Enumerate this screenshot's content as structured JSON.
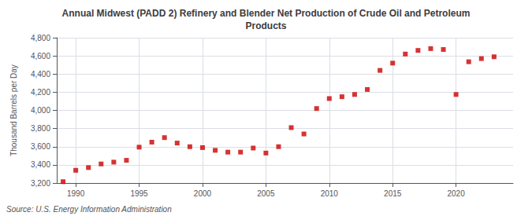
{
  "chart_data": {
    "type": "scatter",
    "title": "Annual Midwest (PADD 2) Refinery and Blender Net Production of Crude Oil and Petroleum\nProducts",
    "ylabel": "Thousand Barrels per Day",
    "source": "Source: U.S. Energy Information Administration",
    "x": [
      1989,
      1990,
      1991,
      1992,
      1993,
      1994,
      1995,
      1996,
      1997,
      1998,
      1999,
      2000,
      2001,
      2002,
      2003,
      2004,
      2005,
      2006,
      2007,
      2008,
      2009,
      2010,
      2011,
      2012,
      2013,
      2014,
      2015,
      2016,
      2017,
      2018,
      2019,
      2020,
      2021,
      2022,
      2023
    ],
    "values": [
      3215,
      3340,
      3370,
      3410,
      3430,
      3450,
      3595,
      3650,
      3700,
      3640,
      3600,
      3590,
      3560,
      3540,
      3540,
      3585,
      3530,
      3600,
      3810,
      3740,
      4020,
      4130,
      4150,
      4175,
      4230,
      4440,
      4520,
      4620,
      4660,
      4680,
      4670,
      4175,
      4535,
      4570,
      4590
    ],
    "color": "#cc0000",
    "marker": "square",
    "xlim": [
      1988.5,
      2024.5
    ],
    "xticks": [
      1990,
      1995,
      2000,
      2005,
      2010,
      2015,
      2020
    ],
    "ylim": [
      3200,
      4800
    ],
    "yticks": [
      {
        "value": 3200,
        "label": "3,200"
      },
      {
        "value": 3400,
        "label": "3,400"
      },
      {
        "value": 3600,
        "label": "3,600"
      },
      {
        "value": 3800,
        "label": "3,800"
      },
      {
        "value": 4000,
        "label": "4,000"
      },
      {
        "value": 4200,
        "label": "4,200"
      },
      {
        "value": 4400,
        "label": "4,400"
      },
      {
        "value": 4600,
        "label": "4,600"
      },
      {
        "value": 4800,
        "label": "4,800"
      }
    ],
    "grid": true
  }
}
